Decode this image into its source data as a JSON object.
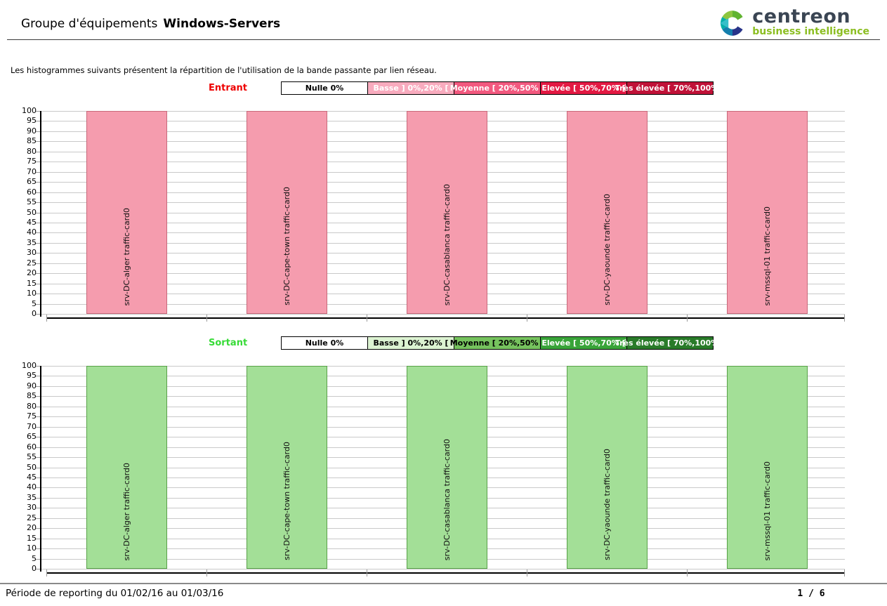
{
  "header": {
    "title_prefix": "Groupe d'équipements",
    "title_name": "Windows-Servers",
    "logo": {
      "brand": "centreon",
      "tagline": "business intelligence",
      "brand_color": "#3a4553",
      "tagline_color": "#8cbe22"
    }
  },
  "intro": "Les histogrammes suivants présentent la répartition de l'utilisation de la bande passante par lien réseau.",
  "charts": [
    {
      "name": "entrant",
      "direction_label": "Entrant",
      "direction_color": "#ee0000",
      "bar_fill": "#f59cae",
      "bar_border": "#c9697b",
      "legend": [
        {
          "label": "Nulle 0%",
          "bg": "#ffffff",
          "fg": "#000000"
        },
        {
          "label": "Basse ] 0%,20% [",
          "bg": "#f8abbe",
          "fg": "#ffffff"
        },
        {
          "label": "Moyenne [ 20%,50% [",
          "bg": "#f2597f",
          "fg": "#ffffff"
        },
        {
          "label": "Elevée [ 50%,70% [",
          "bg": "#e31943",
          "fg": "#ffffff"
        },
        {
          "label": "Très élevée [ 70%,100% ]",
          "bg": "#c01238",
          "fg": "#ffffff"
        }
      ]
    },
    {
      "name": "sortant",
      "direction_label": "Sortant",
      "direction_color": "#37db37",
      "bar_fill": "#a3df97",
      "bar_border": "#58a148",
      "legend": [
        {
          "label": "Nulle 0%",
          "bg": "#ffffff",
          "fg": "#000000"
        },
        {
          "label": "Basse ] 0%,20% [",
          "bg": "#dcf3d2",
          "fg": "#000000"
        },
        {
          "label": "Moyenne [ 20%,50% [",
          "bg": "#76c35e",
          "fg": "#000000"
        },
        {
          "label": "Elevée [ 50%,70% [",
          "bg": "#39a439",
          "fg": "#ffffff"
        },
        {
          "label": "Très élevée [ 70%,100% ]",
          "bg": "#297b29",
          "fg": "#ffffff"
        }
      ]
    }
  ],
  "chart_data": [
    {
      "type": "bar",
      "title": "Entrant",
      "categories": [
        "srv-DC-alger traffic-card0",
        "srv-DC-cape-town traffic-card0",
        "srv-DC-casablanca traffic-card0",
        "srv-DC-yaounde traffic-card0",
        "srv-mssql-01 traffic-card0"
      ],
      "values": [
        100,
        100,
        100,
        100,
        100
      ],
      "xlabel": "",
      "ylabel": "",
      "ylim": [
        0,
        100
      ],
      "ytick_step": 5,
      "grid": true,
      "legend_position": "top",
      "legend_entries": [
        "Nulle 0%",
        "Basse ] 0%,20% [",
        "Moyenne [ 20%,50% [",
        "Elevée [ 50%,70% [",
        "Très élevée [ 70%,100% ]"
      ]
    },
    {
      "type": "bar",
      "title": "Sortant",
      "categories": [
        "srv-DC-alger traffic-card0",
        "srv-DC-cape-town traffic-card0",
        "srv-DC-casablanca traffic-card0",
        "srv-DC-yaounde traffic-card0",
        "srv-mssql-01 traffic-card0"
      ],
      "values": [
        100,
        100,
        100,
        100,
        100
      ],
      "xlabel": "",
      "ylabel": "",
      "ylim": [
        0,
        100
      ],
      "ytick_step": 5,
      "grid": true,
      "legend_position": "top",
      "legend_entries": [
        "Nulle 0%",
        "Basse ] 0%,20% [",
        "Moyenne [ 20%,50% [",
        "Elevée [ 50%,70% [",
        "Très élevée [ 70%,100% ]"
      ]
    }
  ],
  "footer": {
    "period": "Période de reporting du 01/02/16 au 01/03/16",
    "page": "1 / 6"
  }
}
